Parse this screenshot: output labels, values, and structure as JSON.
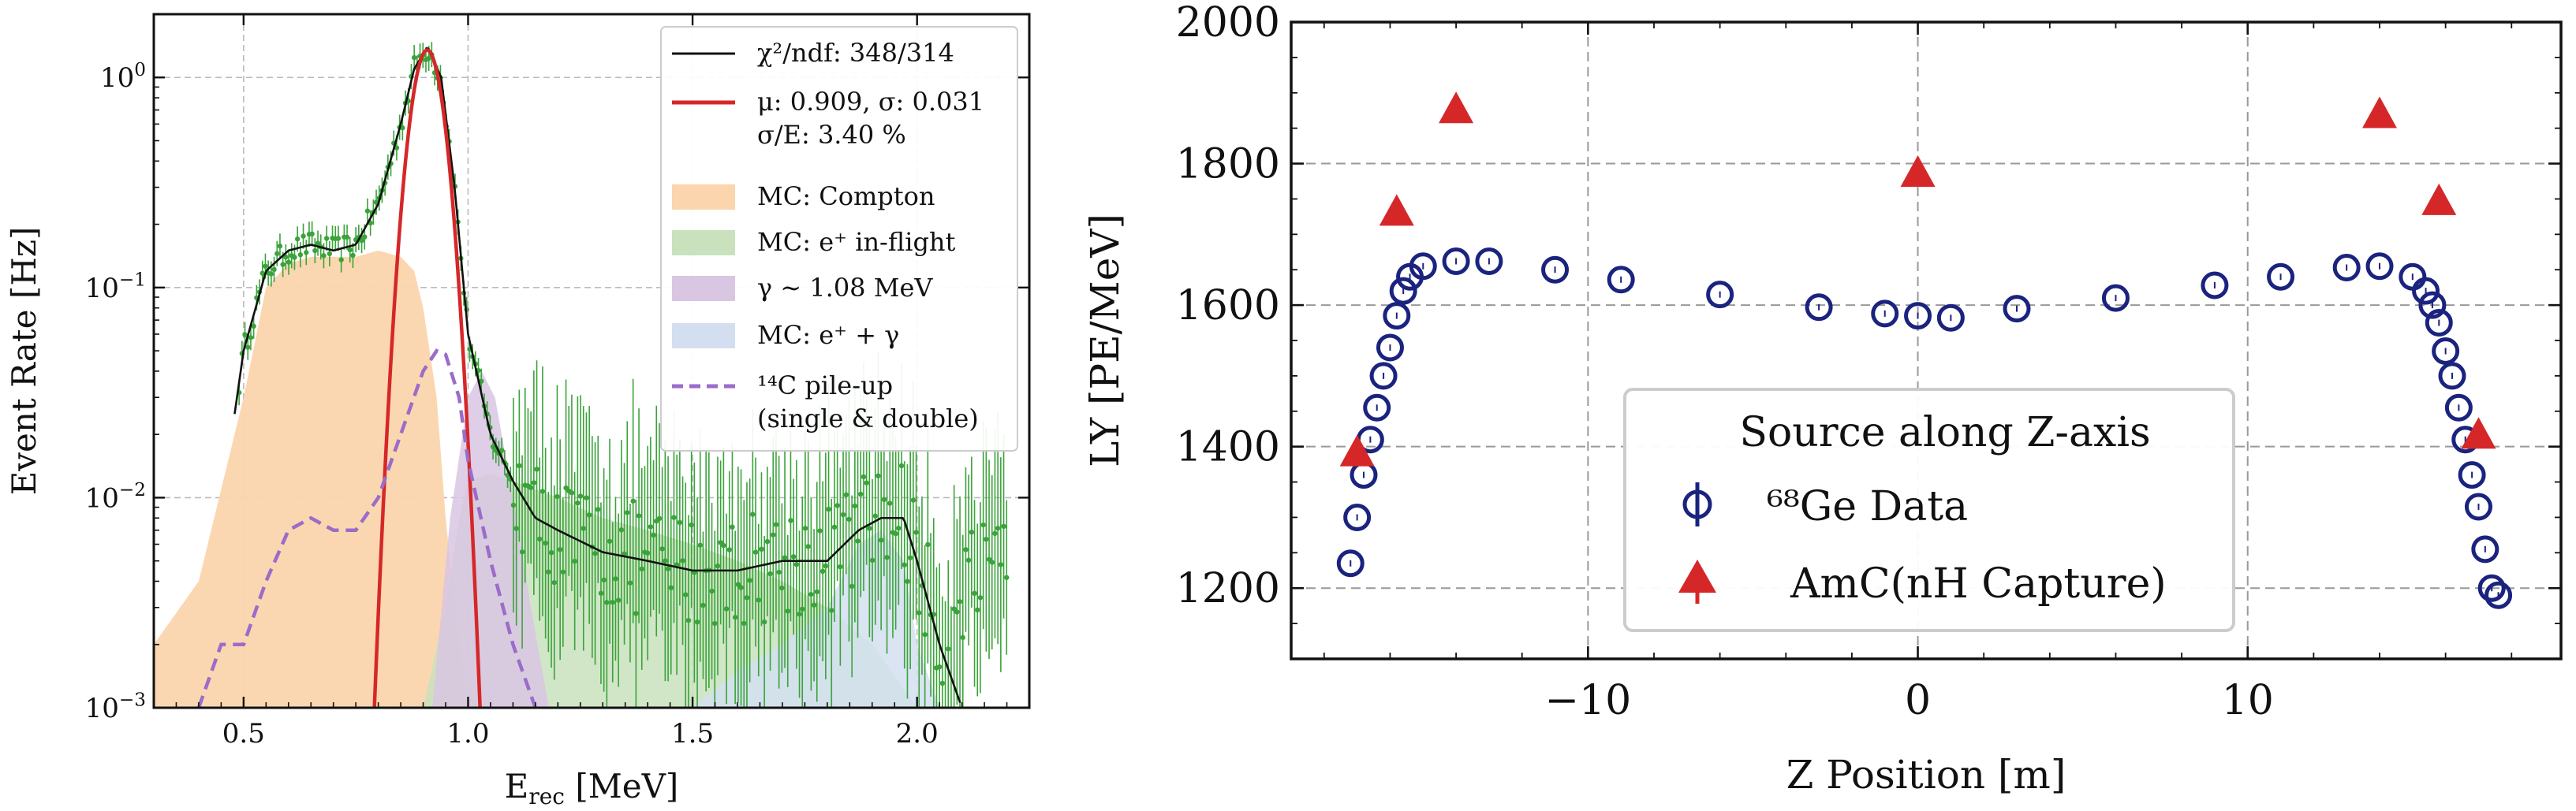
{
  "chart_data": [
    {
      "type": "scatter",
      "xlabel": "E_rec [MeV]",
      "ylabel": "Event Rate [Hz]",
      "xlim": [
        0.3,
        2.25
      ],
      "ylim": [
        0.001,
        2.0
      ],
      "yscale": "log",
      "grid": true,
      "xticks": [
        "0.5",
        "1.0",
        "1.5",
        "2.0"
      ],
      "yticks": [
        "10^-3",
        "10^-2",
        "10^-1",
        "10^0"
      ],
      "legend_position": "top-right",
      "legend": [
        {
          "label": "χ²/ndf: 348/314",
          "kind": "line",
          "color": "#111111"
        },
        {
          "label": "μ: 0.909, σ: 0.031",
          "label2": "σ/E: 3.40 %",
          "kind": "line",
          "color": "#d62728"
        },
        {
          "label": "MC: Compton",
          "kind": "fill",
          "color": "#fbd5ad"
        },
        {
          "label": "MC: e⁺ in-flight",
          "kind": "fill",
          "color": "#c9e2bd"
        },
        {
          "label": "γ ∼ 1.08 MeV",
          "kind": "fill",
          "color": "#d9c6e3"
        },
        {
          "label": "MC: e⁺ + γ",
          "kind": "fill",
          "color": "#d3dff0"
        },
        {
          "label": "¹⁴C pile-up",
          "label2": "(single & double)",
          "kind": "dash",
          "color": "#9b6cc9"
        }
      ],
      "series": [
        {
          "name": "MC: Compton",
          "color": "#fbd5ad",
          "x": [
            0.3,
            0.4,
            0.5,
            0.55,
            0.6,
            0.65,
            0.7,
            0.75,
            0.8,
            0.85,
            0.88,
            0.9,
            0.93,
            0.95,
            0.98,
            1.0
          ],
          "values": [
            0.002,
            0.004,
            0.03,
            0.1,
            0.13,
            0.14,
            0.14,
            0.14,
            0.15,
            0.14,
            0.12,
            0.08,
            0.03,
            0.008,
            0.002,
            0.001
          ]
        },
        {
          "name": "MC: e⁺ in-flight",
          "color": "#c9e2bd",
          "x": [
            0.9,
            0.95,
            0.98,
            1.0,
            1.05,
            1.1,
            1.2,
            1.3,
            1.4,
            1.5,
            1.6,
            1.7,
            1.8,
            1.9,
            2.0
          ],
          "values": [
            0.001,
            0.003,
            0.008,
            0.012,
            0.013,
            0.012,
            0.01,
            0.008,
            0.007,
            0.006,
            0.005,
            0.004,
            0.003,
            0.002,
            0.001
          ]
        },
        {
          "name": "γ ∼ 1.08 MeV",
          "color": "#d9c6e3",
          "x": [
            0.92,
            0.96,
            1.0,
            1.03,
            1.06,
            1.1,
            1.14,
            1.18
          ],
          "values": [
            0.001,
            0.008,
            0.03,
            0.04,
            0.03,
            0.01,
            0.003,
            0.001
          ]
        },
        {
          "name": "MC: e⁺ + γ",
          "color": "#d3dff0",
          "x": [
            1.5,
            1.6,
            1.7,
            1.8,
            1.87,
            1.92,
            1.97,
            2.0,
            2.05
          ],
          "values": [
            0.001,
            0.0015,
            0.002,
            0.003,
            0.006,
            0.007,
            0.005,
            0.002,
            0.001
          ]
        },
        {
          "name": "Fit",
          "color": "#111111",
          "x": [
            0.48,
            0.5,
            0.55,
            0.6,
            0.65,
            0.7,
            0.75,
            0.8,
            0.85,
            0.88,
            0.91,
            0.94,
            0.97,
            1.0,
            1.05,
            1.1,
            1.15,
            1.2,
            1.3,
            1.4,
            1.5,
            1.6,
            1.7,
            1.8,
            1.87,
            1.92,
            1.97,
            2.0,
            2.05,
            2.1
          ],
          "values": [
            0.025,
            0.05,
            0.12,
            0.15,
            0.16,
            0.15,
            0.16,
            0.25,
            0.6,
            1.1,
            1.4,
            1.0,
            0.3,
            0.06,
            0.02,
            0.012,
            0.008,
            0.007,
            0.0055,
            0.005,
            0.0045,
            0.0045,
            0.005,
            0.005,
            0.007,
            0.008,
            0.008,
            0.005,
            0.002,
            0.001
          ]
        },
        {
          "name": "Gauss",
          "color": "#d62728",
          "mu": 0.909,
          "sigma": 0.031,
          "amp": 1.35
        },
        {
          "name": "¹⁴C pile-up",
          "color": "#9b6cc9",
          "x": [
            0.4,
            0.45,
            0.5,
            0.55,
            0.6,
            0.65,
            0.7,
            0.75,
            0.8,
            0.85,
            0.9,
            0.93,
            0.95,
            0.98,
            1.0,
            1.05,
            1.1,
            1.15
          ],
          "values": [
            0.001,
            0.002,
            0.002,
            0.004,
            0.007,
            0.008,
            0.007,
            0.007,
            0.01,
            0.02,
            0.04,
            0.05,
            0.048,
            0.03,
            0.015,
            0.005,
            0.002,
            0.001
          ]
        }
      ]
    },
    {
      "type": "scatter",
      "xlabel": "Z Position [m]",
      "ylabel": "LY [PE/MeV]",
      "xlim": [
        -19,
        19.5
      ],
      "ylim": [
        1100,
        2000
      ],
      "grid": true,
      "xticks": [
        "−10",
        "0",
        "10"
      ],
      "yticks": [
        "1200",
        "1400",
        "1600",
        "1800",
        "2000"
      ],
      "legend_position": "bottom-center",
      "legend_title": "Source along Z-axis",
      "legend": [
        {
          "label": "⁶⁸Ge Data",
          "marker": "circle",
          "color": "#1a237e"
        },
        {
          "label": "AmC(nH Capture)",
          "marker": "triangle",
          "color": "#d62728"
        }
      ],
      "series": [
        {
          "name": "⁶⁸Ge Data",
          "color": "#1a237e",
          "x": [
            -17.2,
            -17.0,
            -16.8,
            -16.6,
            -16.4,
            -16.2,
            -16.0,
            -15.8,
            -15.6,
            -15.4,
            -15.0,
            -14.0,
            -13.0,
            -11.0,
            -9.0,
            -6.0,
            -3.0,
            -1.0,
            0.0,
            1.0,
            3.0,
            6.0,
            9.0,
            11.0,
            13.0,
            14.0,
            15.0,
            15.4,
            15.6,
            15.8,
            16.0,
            16.2,
            16.4,
            16.6,
            16.8,
            17.0,
            17.2,
            17.4,
            17.6
          ],
          "values": [
            1235,
            1300,
            1360,
            1410,
            1455,
            1500,
            1540,
            1585,
            1620,
            1640,
            1655,
            1662,
            1662,
            1650,
            1636,
            1615,
            1597,
            1588,
            1585,
            1582,
            1595,
            1610,
            1628,
            1640,
            1653,
            1655,
            1640,
            1620,
            1600,
            1575,
            1535,
            1500,
            1455,
            1410,
            1360,
            1315,
            1255,
            1200,
            1190
          ]
        },
        {
          "name": "AmC(nH Capture)",
          "color": "#d62728",
          "x": [
            -17.0,
            -15.8,
            -14.0,
            0.0,
            14.0,
            15.8,
            17.0
          ],
          "values": [
            1390,
            1730,
            1875,
            1785,
            1868,
            1745,
            1415
          ]
        }
      ]
    }
  ]
}
